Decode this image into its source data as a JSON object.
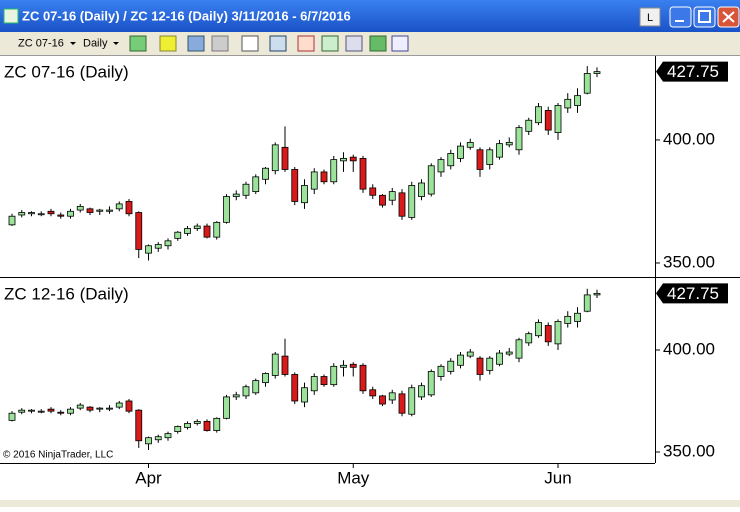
{
  "window": {
    "title": "ZC 07-16 (Daily) / ZC 12-16 (Daily)  3/11/2016 - 6/7/2016",
    "button": "L"
  },
  "toolbar": {
    "instrument": "ZC 07-16",
    "interval": "Daily"
  },
  "copyright": "© 2016 NinjaTrader, LLC",
  "chart_data": [
    {
      "type": "candlestick",
      "title": "ZC 07-16 (Daily)",
      "up_color": "#9be39b",
      "down_color": "#d91a1a",
      "open": [
        365.5,
        369.5,
        370,
        370,
        371,
        369.5,
        369,
        371.5,
        372,
        371,
        371,
        372,
        375,
        370.5,
        354,
        356,
        357,
        360,
        362,
        364,
        365,
        360.5,
        366.5,
        377,
        377.5,
        379,
        384,
        387.5,
        397,
        388,
        374.5,
        380,
        387,
        383,
        391.5,
        393,
        392.5,
        380.5,
        377.5,
        375.5,
        378.5,
        368.5,
        377,
        378,
        387,
        389.5,
        392.5,
        397,
        396,
        390,
        393,
        398,
        396,
        403.5,
        407,
        412,
        403,
        413,
        414,
        419,
        427
      ],
      "high": [
        370,
        371.5,
        371,
        371,
        372,
        370.5,
        372,
        374,
        372.5,
        372,
        373,
        375,
        376,
        371,
        357.5,
        358.5,
        360,
        363,
        365,
        366,
        366,
        367,
        378,
        379.5,
        383,
        386,
        389,
        399,
        405.5,
        389,
        384,
        388.5,
        388,
        393.5,
        395,
        394,
        393.5,
        382,
        378,
        380.5,
        380,
        383,
        384,
        390.5,
        393,
        396,
        399,
        400.5,
        397,
        397,
        400,
        401,
        406,
        409,
        415,
        413.5,
        415,
        419,
        421,
        430,
        429.5
      ],
      "low": [
        365,
        368.5,
        369,
        369,
        369,
        368,
        368,
        370.5,
        369.5,
        369.5,
        370,
        371,
        369,
        352,
        351,
        354.5,
        355.5,
        359,
        361,
        363,
        360,
        359.5,
        366,
        375.5,
        376,
        378,
        382,
        386,
        387,
        373.5,
        372,
        378,
        382,
        382,
        387,
        387,
        378.5,
        376,
        372.5,
        373.5,
        367.5,
        367.5,
        375.5,
        377,
        385,
        388,
        391,
        396,
        385,
        388,
        392,
        397,
        394,
        402,
        406,
        402,
        400,
        411,
        411,
        418.5,
        425.5
      ],
      "close": [
        369,
        370.5,
        370.5,
        370,
        370,
        369,
        371,
        373,
        370.5,
        371.5,
        371.5,
        374,
        370,
        355.5,
        357,
        357.5,
        359,
        362.5,
        364,
        365,
        360.5,
        366.5,
        377,
        378,
        382,
        385,
        388.5,
        398,
        388,
        375,
        381.5,
        387,
        383,
        392,
        392.5,
        391.5,
        380,
        377.5,
        373.5,
        379,
        369,
        381.5,
        382.5,
        389.5,
        392,
        394.5,
        397.5,
        399,
        388,
        396,
        398.5,
        399,
        405,
        408,
        413.5,
        404,
        414,
        416.5,
        418,
        427,
        427.75
      ],
      "last_value": 427.75,
      "ylim": [
        344.3,
        433.7
      ],
      "yticks": [
        {
          "value": 350,
          "label": "350.00"
        },
        {
          "value": 400,
          "label": "400.00"
        }
      ]
    },
    {
      "type": "candlestick",
      "title": "ZC 12-16 (Daily)",
      "up_color": "#9be39b",
      "down_color": "#d91a1a",
      "categories": [
        null,
        null,
        null,
        null,
        null,
        null,
        null,
        null,
        null,
        null,
        null,
        null,
        null,
        null,
        "Apr",
        null,
        null,
        null,
        null,
        null,
        null,
        null,
        null,
        null,
        null,
        null,
        null,
        null,
        null,
        null,
        null,
        null,
        null,
        null,
        null,
        "May",
        null,
        null,
        null,
        null,
        null,
        null,
        null,
        null,
        null,
        null,
        null,
        null,
        null,
        null,
        null,
        null,
        null,
        null,
        null,
        null,
        "Jun",
        null,
        null,
        null,
        null
      ],
      "open": [
        365.5,
        369.5,
        370,
        370,
        371,
        369.5,
        369,
        371.5,
        372,
        371,
        371,
        372,
        375,
        370.5,
        354,
        356,
        357,
        360,
        362,
        364,
        365,
        360.5,
        366.5,
        377,
        377.5,
        379,
        384,
        387.5,
        397,
        388,
        374.5,
        380,
        387,
        383,
        391.5,
        393,
        392.5,
        380.5,
        377.5,
        375.5,
        378.5,
        368.5,
        377,
        378,
        387,
        389.5,
        392.5,
        397,
        396,
        390,
        393,
        398,
        396,
        403.5,
        407,
        412,
        403,
        413,
        414,
        419,
        427
      ],
      "high": [
        370,
        371.5,
        371,
        371,
        372,
        370.5,
        372,
        374,
        372.5,
        372,
        373,
        375,
        376,
        371,
        357.5,
        358.5,
        360,
        363,
        365,
        366,
        366,
        367,
        378,
        379.5,
        383,
        386,
        389,
        399,
        405.5,
        389,
        384,
        388.5,
        388,
        393.5,
        395,
        394,
        393.5,
        382,
        378,
        380.5,
        380,
        383,
        384,
        390.5,
        393,
        396,
        399,
        400.5,
        397,
        397,
        400,
        401,
        406,
        409,
        415,
        413.5,
        415,
        419,
        421,
        430,
        429.5
      ],
      "low": [
        365,
        368.5,
        369,
        369,
        369,
        368,
        368,
        370.5,
        369.5,
        369.5,
        370,
        371,
        369,
        352,
        351,
        354.5,
        355.5,
        359,
        361,
        363,
        360,
        359.5,
        366,
        375.5,
        376,
        378,
        382,
        386,
        387,
        373.5,
        372,
        378,
        382,
        382,
        387,
        387,
        378.5,
        376,
        372.5,
        373.5,
        367.5,
        367.5,
        375.5,
        377,
        385,
        388,
        391,
        396,
        385,
        388,
        392,
        397,
        394,
        402,
        406,
        402,
        400,
        411,
        411,
        418.5,
        425.5
      ],
      "close": [
        369,
        370.5,
        370.5,
        370,
        370,
        369,
        371,
        373,
        370.5,
        371.5,
        371.5,
        374,
        370,
        355.5,
        357,
        357.5,
        359,
        362.5,
        364,
        365,
        360.5,
        366.5,
        377,
        378,
        382,
        385,
        388.5,
        398,
        388,
        375,
        381.5,
        387,
        383,
        392,
        392.5,
        391.5,
        380,
        377.5,
        373.5,
        379,
        369,
        381.5,
        382.5,
        389.5,
        392,
        394.5,
        397.5,
        399,
        388,
        396,
        398.5,
        399,
        405,
        408,
        413.5,
        404,
        414,
        416.5,
        418,
        427,
        427.75
      ],
      "last_value": 427.75,
      "ylim": [
        344.6,
        434.8
      ],
      "yticks": [
        {
          "value": 350,
          "label": "350.00"
        },
        {
          "value": 400,
          "label": "400.00"
        }
      ]
    }
  ]
}
